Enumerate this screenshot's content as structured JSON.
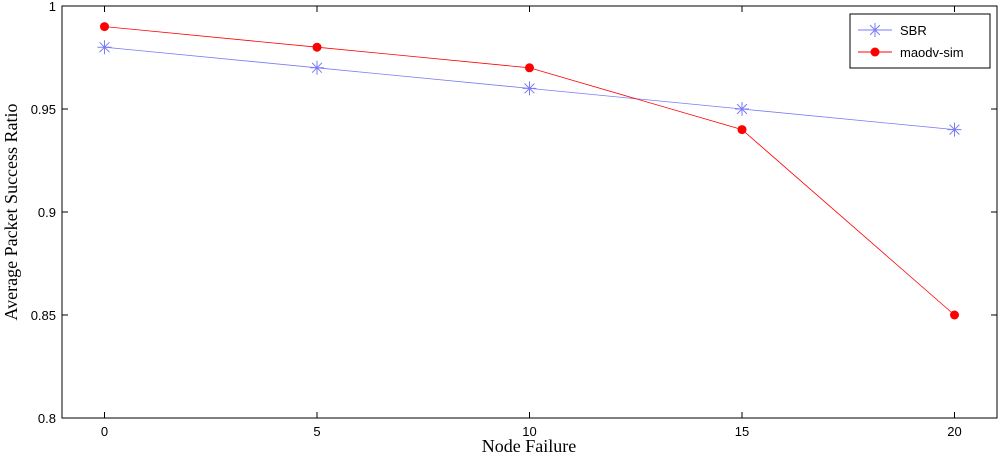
{
  "chart_data": {
    "type": "line",
    "xlabel": "Node Failure",
    "ylabel": "Average Packet Success Ratio",
    "x": [
      0,
      5,
      10,
      15,
      20
    ],
    "series": [
      {
        "name": "SBR",
        "color": "#7b7bf7",
        "marker": "star",
        "values": [
          0.98,
          0.97,
          0.96,
          0.95,
          0.94
        ]
      },
      {
        "name": "maodv-sim",
        "color": "#ff0000",
        "marker": "dot",
        "values": [
          0.99,
          0.98,
          0.97,
          0.94,
          0.85
        ]
      }
    ],
    "xlim": [
      -1,
      21
    ],
    "ylim": [
      0.8,
      1
    ],
    "xticks": [
      0,
      5,
      10,
      15,
      20
    ],
    "yticks": [
      0.8,
      0.85,
      0.9,
      0.95,
      1
    ],
    "grid": false,
    "legend": "upper right"
  }
}
